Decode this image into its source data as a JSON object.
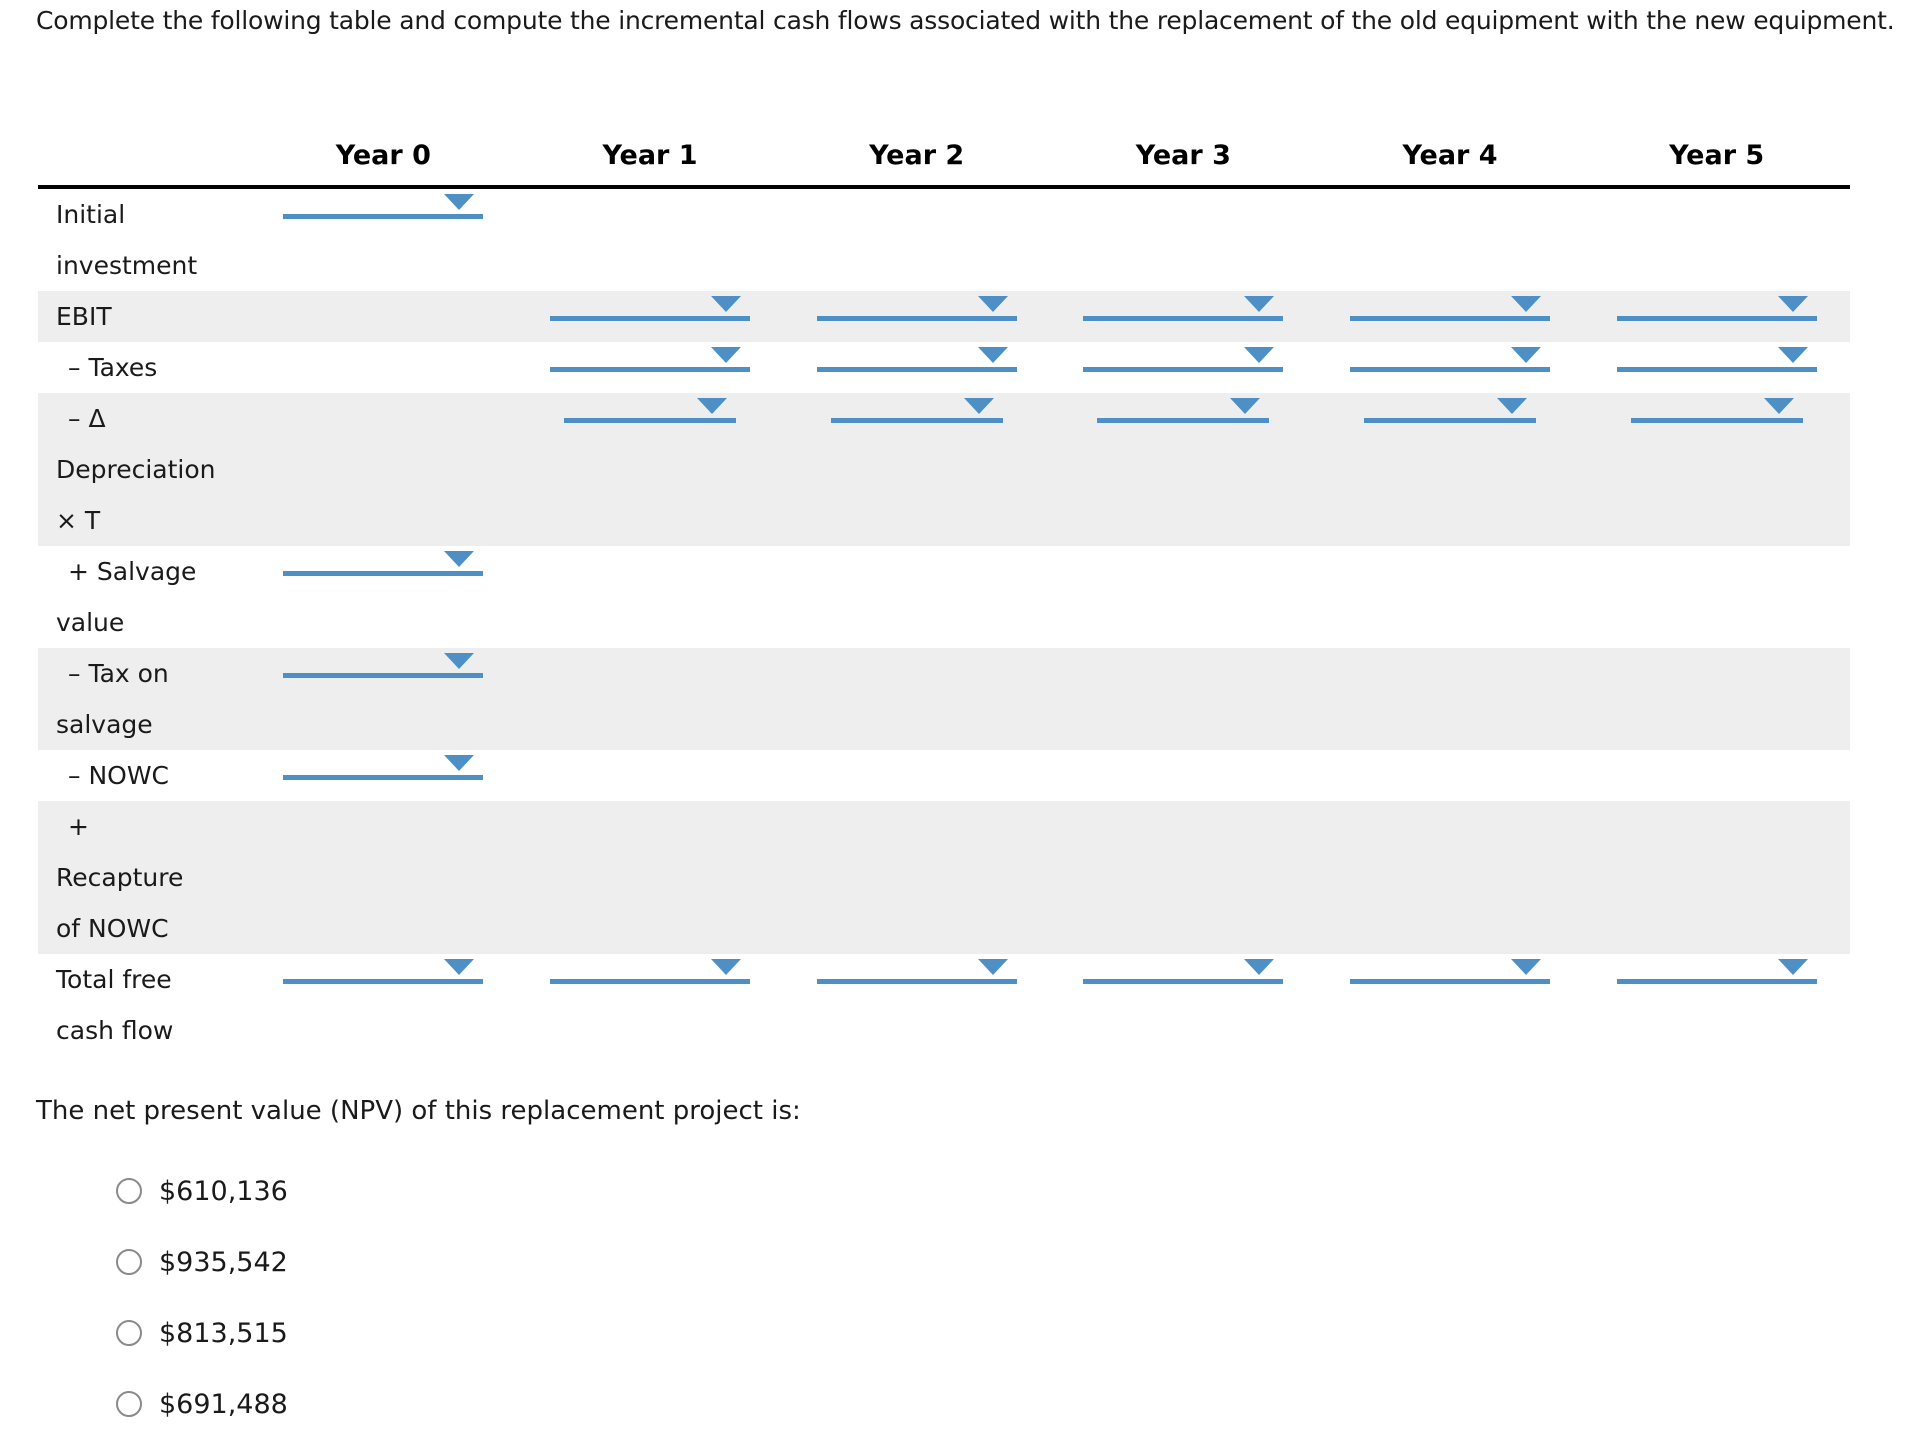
{
  "title": "Complete the following table and compute the incremental cash flows associated with the replacement of the old equipment with the new equipment.",
  "colors": {
    "accent_blue": "#4e90c5",
    "row_stripe": "#eeeeee",
    "header_rule": "#000000",
    "radio_border": "#8a8a8a"
  },
  "icons": {
    "dropdown_arrow": "▼",
    "radio_unselected": "○"
  },
  "table": {
    "columns": [
      "Year 0",
      "Year 1",
      "Year 2",
      "Year 3",
      "Year 4",
      "Year 5"
    ],
    "rows": [
      {
        "id": "initial-investment",
        "lines": [
          "Initial",
          "investment"
        ]
      },
      {
        "id": "ebit",
        "lines": [
          "EBIT"
        ]
      },
      {
        "id": "taxes",
        "lines": [
          "– Taxes"
        ]
      },
      {
        "id": "delta-depreciation-t",
        "lines": [
          "– Δ",
          "Depreciation",
          "× T"
        ]
      },
      {
        "id": "salvage-value",
        "lines": [
          "+ Salvage",
          "value"
        ]
      },
      {
        "id": "tax-on-salvage",
        "lines": [
          "– Tax on",
          "salvage"
        ]
      },
      {
        "id": "nowc",
        "lines": [
          "– NOWC"
        ]
      },
      {
        "id": "recapture-of-nowc",
        "lines": [
          "+",
          "Recapture",
          "of NOWC"
        ]
      },
      {
        "id": "total-free-cash-flow",
        "lines": [
          "Total free",
          "cash flow"
        ]
      }
    ]
  },
  "question": {
    "prompt": "The net present value (NPV) of this replacement project is:",
    "options": [
      "$610,136",
      "$935,542",
      "$813,515",
      "$691,488"
    ]
  }
}
